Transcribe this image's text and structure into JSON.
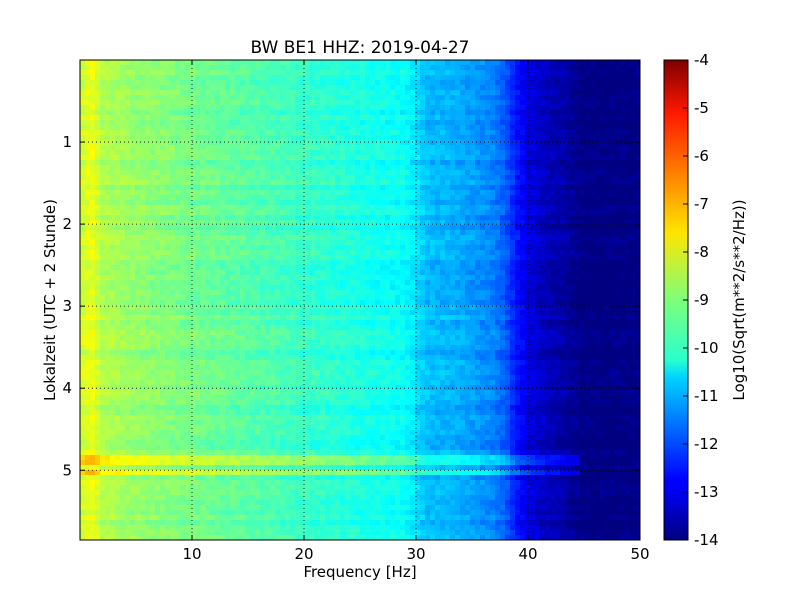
{
  "chart_data": {
    "type": "heatmap",
    "title": "BW BE1 HHZ: 2019-04-27",
    "xlabel": "Frequency [Hz]",
    "ylabel": "Lokalzeit (UTC + 2 Stunde)",
    "xlim": [
      0,
      50
    ],
    "ylim": [
      5.85,
      0
    ],
    "xticks": [
      "10",
      "20",
      "30",
      "40",
      "50"
    ],
    "yticks": [
      "1",
      "2",
      "3",
      "4",
      "5"
    ],
    "xtick_values": [
      10,
      20,
      30,
      40,
      50
    ],
    "ytick_values": [
      1,
      2,
      3,
      4,
      5
    ],
    "grid": true,
    "colormap": "jet",
    "colorbar": {
      "label": "Log10(Sqrt(m**2/s**2/Hz))",
      "range": [
        -14,
        -4
      ],
      "ticks": [
        "-4",
        "-5",
        "-6",
        "-7",
        "-8",
        "-9",
        "-10",
        "-11",
        "-12",
        "-13",
        "-14"
      ],
      "tick_values": [
        -4,
        -5,
        -6,
        -7,
        -8,
        -9,
        -10,
        -11,
        -12,
        -13,
        -14
      ]
    },
    "spectrum_profile": {
      "frequency_hz": [
        0,
        1,
        2,
        5,
        10,
        15,
        20,
        25,
        29,
        31,
        33,
        35,
        37,
        38,
        39,
        40,
        41,
        42,
        43,
        44,
        45,
        50
      ],
      "log10_psd": [
        -8.3,
        -7.9,
        -8.5,
        -8.8,
        -9.1,
        -9.4,
        -9.7,
        -10.0,
        -10.2,
        -10.9,
        -11.0,
        -11.2,
        -11.5,
        -11.9,
        -12.6,
        -13.0,
        -13.3,
        -13.5,
        -13.6,
        -13.8,
        -14.0,
        -14.0
      ]
    },
    "highlighted_rows_hours": [
      4.88,
      5.03
    ]
  }
}
